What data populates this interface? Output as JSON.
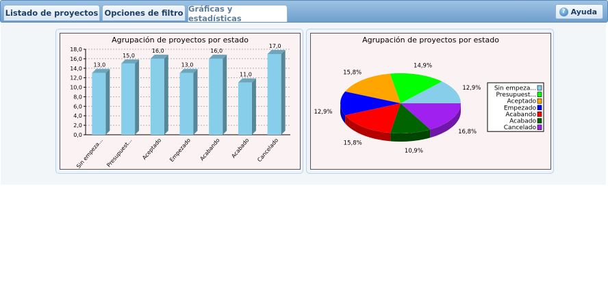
{
  "tabs": [
    {
      "label": "Listado de proyectos"
    },
    {
      "label": "Opciones de filtro"
    },
    {
      "label": "Gráficas y estadísticas"
    }
  ],
  "help_label": "Ayuda",
  "chart_data": [
    {
      "type": "bar",
      "title": "Agrupación de proyectos por estado",
      "categories": [
        "Sin empeza...",
        "Presupuest...",
        "Aceptado",
        "Empezado",
        "Acabando",
        "Acabado",
        "Cancelado"
      ],
      "values": [
        13.0,
        15.0,
        16.0,
        13.0,
        16.0,
        11.0,
        17.0
      ],
      "value_labels": [
        "13,0",
        "15,0",
        "16,0",
        "13,0",
        "16,0",
        "11,0",
        "17,0"
      ],
      "yticks": [
        "0,0",
        "2,0",
        "4,0",
        "6,0",
        "8,0",
        "10,0",
        "12,0",
        "14,0",
        "16,0",
        "18,0"
      ],
      "ylim": [
        0,
        18
      ],
      "grid": true,
      "bar_color": "#87ceeb"
    },
    {
      "type": "pie",
      "title": "Agrupación de proyectos por estado",
      "legend_position": "right",
      "slices": [
        {
          "label": "Sin empeza...",
          "value": 12.9,
          "display": "12,9%",
          "color": "#87ceeb"
        },
        {
          "label": "Presupuest...",
          "value": 14.9,
          "display": "14,9%",
          "color": "#00ff00"
        },
        {
          "label": "Aceptado",
          "value": 15.8,
          "display": "15,8%",
          "color": "#ffa500"
        },
        {
          "label": "Empezado",
          "value": 12.9,
          "display": "12,9%",
          "color": "#0000ff"
        },
        {
          "label": "Acabando",
          "value": 15.8,
          "display": "15,8%",
          "color": "#ff0000"
        },
        {
          "label": "Acabado",
          "value": 10.9,
          "display": "10,9%",
          "color": "#006400"
        },
        {
          "label": "Cancelado",
          "value": 16.8,
          "display": "16,8%",
          "color": "#a020f0"
        }
      ]
    }
  ]
}
